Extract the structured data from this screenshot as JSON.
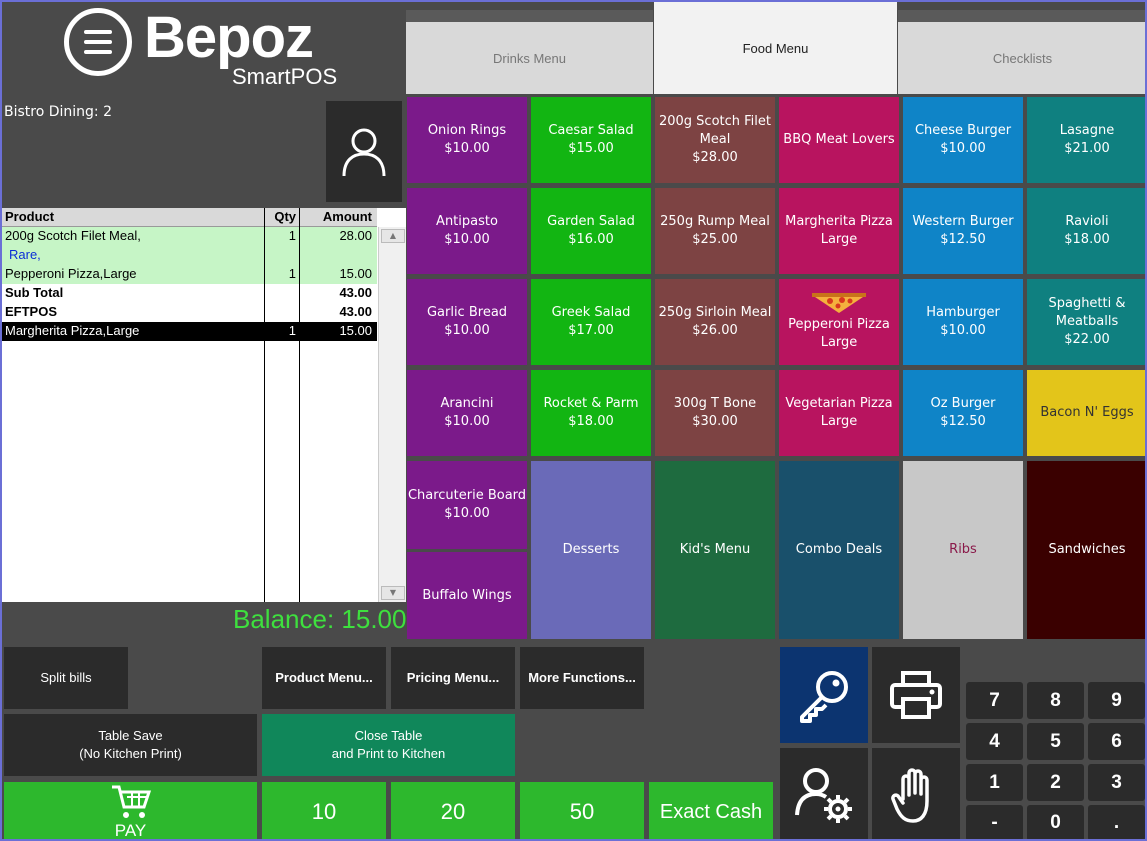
{
  "brand": {
    "name": "Bepoz",
    "sub": "SmartPOS"
  },
  "table_label": "Bistro Dining: 2",
  "order": {
    "headers": {
      "product": "Product",
      "qty": "Qty",
      "amount": "Amount"
    },
    "rows": [
      {
        "product": "200g Scotch Filet Meal,",
        "qty": "1",
        "amount": "28.00",
        "style": "item"
      },
      {
        "product": "Rare,",
        "qty": "",
        "amount": "",
        "style": "modifier"
      },
      {
        "product": "Pepperoni Pizza,Large",
        "qty": "1",
        "amount": "15.00",
        "style": "item"
      },
      {
        "product": "Sub Total",
        "qty": "",
        "amount": "43.00",
        "style": "total"
      },
      {
        "product": "EFTPOS",
        "qty": "",
        "amount": "43.00",
        "style": "total"
      },
      {
        "product": "Margherita Pizza,Large",
        "qty": "1",
        "amount": "15.00",
        "style": "selected"
      }
    ]
  },
  "balance": "Balance: 15.00",
  "tabs": [
    {
      "label": "Drinks Menu",
      "active": false
    },
    {
      "label": "Food Menu",
      "active": true
    },
    {
      "label": "Checklists",
      "active": false
    }
  ],
  "menu_items": [
    {
      "name": "Onion Rings",
      "price": "$10.00",
      "color": "#7b1a8a"
    },
    {
      "name": "Caesar Salad",
      "price": "$15.00",
      "color": "#12b512"
    },
    {
      "name": "200g Scotch Filet Meal",
      "price": "$28.00",
      "color": "#7d4343"
    },
    {
      "name": "BBQ Meat Lovers",
      "price": "",
      "color": "#b8145f"
    },
    {
      "name": "Cheese Burger",
      "price": "$10.00",
      "color": "#0f84c7"
    },
    {
      "name": "Lasagne",
      "price": "$21.00",
      "color": "#0f8080"
    },
    {
      "name": "Antipasto",
      "price": "$10.00",
      "color": "#7b1a8a"
    },
    {
      "name": "Garden Salad",
      "price": "$16.00",
      "color": "#12b512"
    },
    {
      "name": "250g Rump Meal",
      "price": "$25.00",
      "color": "#7d4343"
    },
    {
      "name": "Margherita Pizza Large",
      "price": "",
      "color": "#b8145f"
    },
    {
      "name": "Western Burger",
      "price": "$12.50",
      "color": "#0f84c7"
    },
    {
      "name": "Ravioli",
      "price": "$18.00",
      "color": "#0f8080"
    },
    {
      "name": "Garlic Bread",
      "price": "$10.00",
      "color": "#7b1a8a"
    },
    {
      "name": "Greek Salad",
      "price": "$17.00",
      "color": "#12b512"
    },
    {
      "name": "250g Sirloin Meal",
      "price": "$26.00",
      "color": "#7d4343"
    },
    {
      "name": "Pepperoni Pizza Large",
      "price": "",
      "color": "#b8145f"
    },
    {
      "name": "Hamburger",
      "price": "$10.00",
      "color": "#0f84c7"
    },
    {
      "name": "Spaghetti & Meatballs",
      "price": "$22.00",
      "color": "#0f8080"
    },
    {
      "name": "Arancini",
      "price": "$10.00",
      "color": "#7b1a8a"
    },
    {
      "name": "Rocket & Parm",
      "price": "$18.00",
      "color": "#12b512"
    },
    {
      "name": "300g T Bone",
      "price": "$30.00",
      "color": "#7d4343"
    },
    {
      "name": "Vegetarian Pizza Large",
      "price": "",
      "color": "#b8145f"
    },
    {
      "name": "Oz Burger",
      "price": "$12.50",
      "color": "#0f84c7"
    },
    {
      "name": "Bacon N' Eggs",
      "price": "",
      "color": "#e3c51a"
    }
  ],
  "menu_bottom": {
    "charcuterie": {
      "name": "Charcuterie Board",
      "price": "$10.00",
      "color": "#7b1a8a"
    },
    "buffalo": {
      "name": "Buffalo Wings",
      "color": "#7b1a8a"
    },
    "categories": [
      {
        "name": "Desserts",
        "color": "#6a6ab8"
      },
      {
        "name": "Kid's Menu",
        "color": "#1e6b3f"
      },
      {
        "name": "Combo Deals",
        "color": "#19506b"
      },
      {
        "name": "Ribs",
        "color": "#c8c8c8"
      },
      {
        "name": "Sandwiches",
        "color": "#3a0000"
      }
    ]
  },
  "actions": {
    "split_bills": "Split bills",
    "product_menu": "Product Menu...",
    "pricing_menu": "Pricing Menu...",
    "more_functions": "More Functions...",
    "table_save_1": "Table Save",
    "table_save_2": "(No Kitchen Print)",
    "close_table_1": "Close Table",
    "close_table_2": "and Print to Kitchen",
    "pay": "PAY",
    "cash_10": "10",
    "cash_20": "20",
    "cash_50": "50",
    "exact_cash": "Exact Cash"
  },
  "keypad": [
    "7",
    "8",
    "9",
    "4",
    "5",
    "6",
    "1",
    "2",
    "3",
    "-",
    "0",
    "."
  ]
}
